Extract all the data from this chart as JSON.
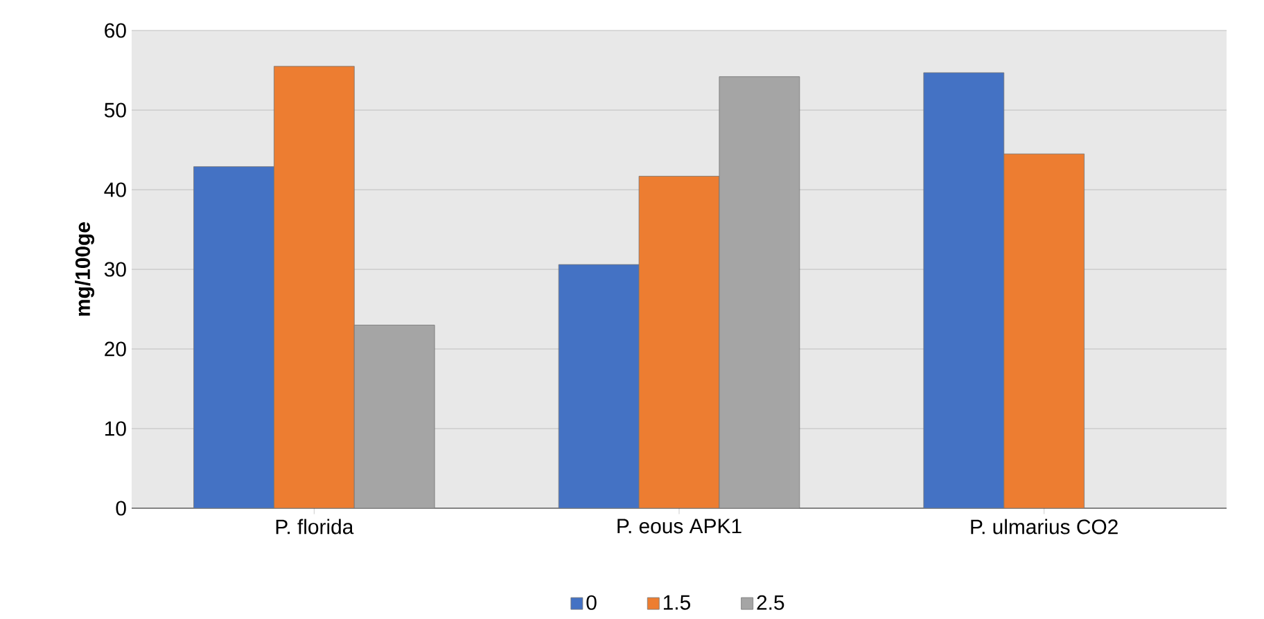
{
  "chart_data": {
    "type": "bar",
    "ylabel": "mg/100ge",
    "categories": [
      "P. florida",
      "P. eous APK1",
      "P. ulmarius CO2"
    ],
    "series": [
      {
        "name": "0",
        "color": "#4472c4",
        "values": [
          42.9,
          30.6,
          54.7
        ]
      },
      {
        "name": "1.5",
        "color": "#ed7d31",
        "values": [
          55.5,
          41.7,
          44.5
        ]
      },
      {
        "name": "2.5",
        "color": "#a5a5a5",
        "values": [
          23.0,
          54.2,
          null
        ]
      }
    ],
    "ylim": [
      0,
      60
    ],
    "yticks": [
      0,
      10,
      20,
      30,
      40,
      50,
      60
    ],
    "grid": "y",
    "legend": "bottom"
  }
}
